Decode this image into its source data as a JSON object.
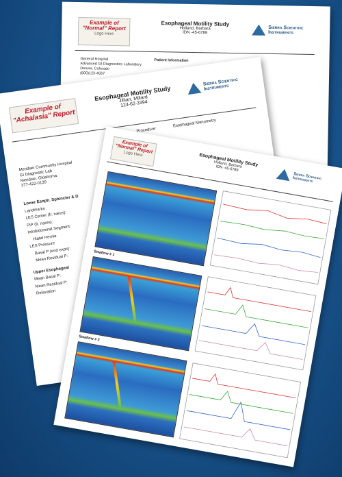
{
  "documents": [
    {
      "badge": "Example of \"Normal\" Report",
      "logo_note": "Logo Here",
      "title": "Esophageal Motility Study",
      "patient": "Holland, Barbara",
      "idn": "IDN -45-6789",
      "company": "Sierra Scientific Instruments",
      "address": [
        "General Hospital",
        "Advanced GI Diagnostics Laboratory",
        "Denver, Colorado",
        "(800)123-4567"
      ],
      "section": "Patient Information"
    },
    {
      "badge": "Example of \"Achalasia\" Report",
      "title": "Esophageal Motility Study",
      "patient": "Jillian, Millard",
      "idn": "124-62-3394",
      "company": "Sierra Scientific Instruments",
      "address": [
        "Meridian Community Hospital",
        "GI Diagnostic Lab",
        "Meridian, Oklahoma",
        "377-422-0139"
      ],
      "procedure_label": "Procedure:",
      "procedure": "Esophageal Manometry",
      "rows": [
        "Lower Esoph. Sphincter & D",
        "Landmarks",
        "LES Center (fr. nares):",
        "PIP (fr. nares):",
        "Intrabdominal Segment:",
        "Hiatal Hernia",
        "LES Pressure",
        "Basal P (end expir):",
        "Mean Residual P:",
        "Upper Esophageal",
        "Mean Basal P:",
        "Mean Residual P:",
        "Relaxation"
      ]
    },
    {
      "badge": "Example of \"Normal\" Report",
      "logo_note": "Logo Here",
      "title": "Esophageal Motility Study",
      "patient": "Holland, Barbara",
      "idn": "IDN -45-6789",
      "company": "Sierra Scientific Instruments",
      "panels": [
        "Swallow # 1",
        "Swallow # 2"
      ]
    }
  ]
}
